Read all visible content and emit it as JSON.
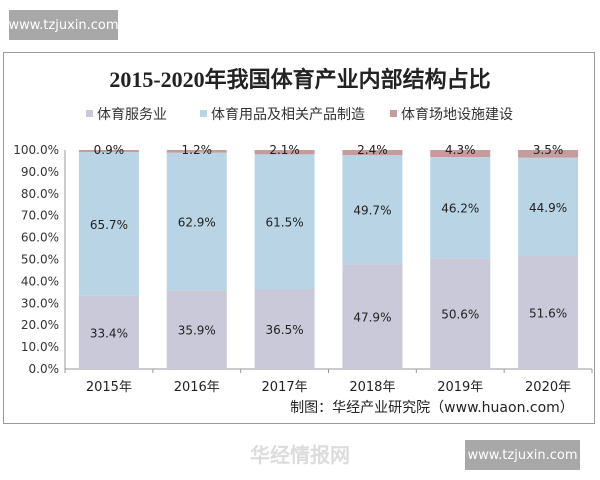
{
  "watermarks": {
    "top": "www.tzjuxin.com",
    "bottom": "www.tzjuxin.com",
    "logo": "华经情报网",
    "logo_sub": "huaon.com"
  },
  "source": "制图：华经产业研究院（www.huaon.com）",
  "chart_data": {
    "type": "bar",
    "stacked": true,
    "title": "2015-2020年我国体育产业内部结构占比",
    "categories": [
      "2015年",
      "2016年",
      "2017年",
      "2018年",
      "2019年",
      "2020年"
    ],
    "series": [
      {
        "name": "体育服务业",
        "values": [
          33.4,
          35.9,
          36.5,
          47.9,
          50.6,
          51.6
        ],
        "labels": [
          "33.4%",
          "35.9%",
          "36.5%",
          "47.9%",
          "50.6%",
          "51.6%"
        ],
        "color": "#c9c9d9"
      },
      {
        "name": "体育用品及相关产品制造",
        "values": [
          65.7,
          62.9,
          61.5,
          49.7,
          46.2,
          44.9
        ],
        "labels": [
          "65.7%",
          "62.9%",
          "61.5%",
          "49.7%",
          "46.2%",
          "44.9%"
        ],
        "color": "#b9d5e5"
      },
      {
        "name": "体育场地设施建设",
        "values": [
          0.9,
          1.2,
          2.1,
          2.4,
          4.3,
          3.5
        ],
        "labels": [
          "0.9%",
          "1.2%",
          "2.1%",
          "2.4%",
          "4.3%",
          "3.5%"
        ],
        "color": "#c49c9c"
      }
    ],
    "yticks": [
      "0.0%",
      "10.0%",
      "20.0%",
      "30.0%",
      "40.0%",
      "50.0%",
      "60.0%",
      "70.0%",
      "80.0%",
      "90.0%",
      "100.0%"
    ],
    "ylim": [
      0,
      100
    ],
    "grid": false,
    "legend": "top-center"
  }
}
